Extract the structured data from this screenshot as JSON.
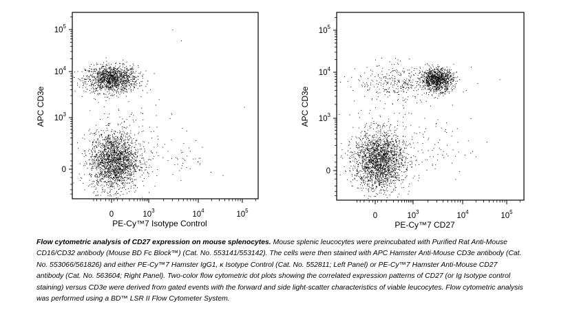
{
  "chart_data": [
    {
      "type": "scatter",
      "title": "",
      "panel": "Left Panel",
      "xlabel": "PE-Cy™7 Isotype Control",
      "ylabel": "APC CD3e",
      "xscale": "biexponential",
      "yscale": "biexponential",
      "xlim": [
        -300,
        262144
      ],
      "ylim": [
        -400,
        262144
      ],
      "xticks": [
        {
          "value": 0,
          "base": "0",
          "exp": ""
        },
        {
          "value": 1000,
          "base": "10",
          "exp": "3"
        },
        {
          "value": 10000,
          "base": "10",
          "exp": "4"
        },
        {
          "value": 100000,
          "base": "10",
          "exp": "5"
        }
      ],
      "yticks": [
        {
          "value": 0,
          "base": "0",
          "exp": ""
        },
        {
          "value": 1000,
          "base": "10",
          "exp": "3"
        },
        {
          "value": 10000,
          "base": "10",
          "exp": "4"
        },
        {
          "value": 100000,
          "base": "10",
          "exp": "5"
        }
      ],
      "clusters": [
        {
          "x_center": 0,
          "y_center": 7000,
          "sd_x_decades": 0.35,
          "sd_y_decades": 0.15,
          "events": 1300
        },
        {
          "x_center": 20,
          "y_center": 50,
          "sd_x_decades": 0.33,
          "sd_y_decades": 0.28,
          "events": 2000
        },
        {
          "x_center": 3000,
          "y_center": 80,
          "sd_x_decades": 0.45,
          "sd_y_decades": 0.25,
          "events": 70
        },
        {
          "x_center": 200,
          "y_center": 600,
          "sd_x_decades": 0.5,
          "sd_y_decades": 0.35,
          "events": 60
        }
      ],
      "outliers": [
        [
          3000,
          100000
        ],
        [
          4500,
          55000
        ],
        [
          110000,
          1700
        ],
        [
          1600,
          2500
        ]
      ]
    },
    {
      "type": "scatter",
      "title": "",
      "panel": "Right Panel",
      "xlabel": "PE-Cy™7 CD27",
      "ylabel": "APC CD3e",
      "xscale": "biexponential",
      "yscale": "biexponential",
      "xlim": [
        -300,
        262144
      ],
      "ylim": [
        -400,
        262144
      ],
      "xticks": [
        {
          "value": 0,
          "base": "0",
          "exp": ""
        },
        {
          "value": 1000,
          "base": "10",
          "exp": "3"
        },
        {
          "value": 10000,
          "base": "10",
          "exp": "4"
        },
        {
          "value": 100000,
          "base": "10",
          "exp": "5"
        }
      ],
      "yticks": [
        {
          "value": 0,
          "base": "0",
          "exp": ""
        },
        {
          "value": 1000,
          "base": "10",
          "exp": "3"
        },
        {
          "value": 10000,
          "base": "10",
          "exp": "4"
        },
        {
          "value": 100000,
          "base": "10",
          "exp": "5"
        }
      ],
      "clusters": [
        {
          "x_center": 3000,
          "y_center": 7000,
          "sd_x_decades": 0.16,
          "sd_y_decades": 0.12,
          "events": 1000
        },
        {
          "x_center": 400,
          "y_center": 6000,
          "sd_x_decades": 0.6,
          "sd_y_decades": 0.2,
          "events": 350
        },
        {
          "x_center": 30,
          "y_center": 60,
          "sd_x_decades": 0.33,
          "sd_y_decades": 0.28,
          "events": 2000
        },
        {
          "x_center": 1500,
          "y_center": 150,
          "sd_x_decades": 0.5,
          "sd_y_decades": 0.3,
          "events": 90
        },
        {
          "x_center": 300,
          "y_center": 700,
          "sd_x_decades": 0.6,
          "sd_y_decades": 0.4,
          "events": 60
        }
      ],
      "outliers": [
        [
          15000,
          120
        ],
        [
          35000,
          250
        ],
        [
          0,
          20000
        ],
        [
          50,
          22000
        ]
      ]
    }
  ],
  "caption": {
    "title": "Flow cytometric analysis of CD27 expression on mouse splenocytes.",
    "body": " Mouse splenic leucocytes were preincubated with Purified Rat Anti-Mouse CD16/CD32 antibody (Mouse BD Fc Block™) (Cat. No. 553141/553142). The cells were then stained with APC Hamster Anti-Mouse CD3e antibody (Cat. No. 553066/561826) and either PE-Cy™7 Hamster IgG1, κ Isotype Control (Cat. No. 552811; Left Panel) or PE-Cy™7 Hamster Anti-Mouse CD27 antibody (Cat. No. 563604; Right Panel). Two-color flow cytometric dot plots showing the correlated expression patterns of CD27 (or Ig Isotype control staining) versus CD3e were derived from gated events with the forward and side light-scatter characteristics of viable leucocytes. Flow cytometric analysis was performed using a BD™ LSR II Flow Cytometer System."
  }
}
